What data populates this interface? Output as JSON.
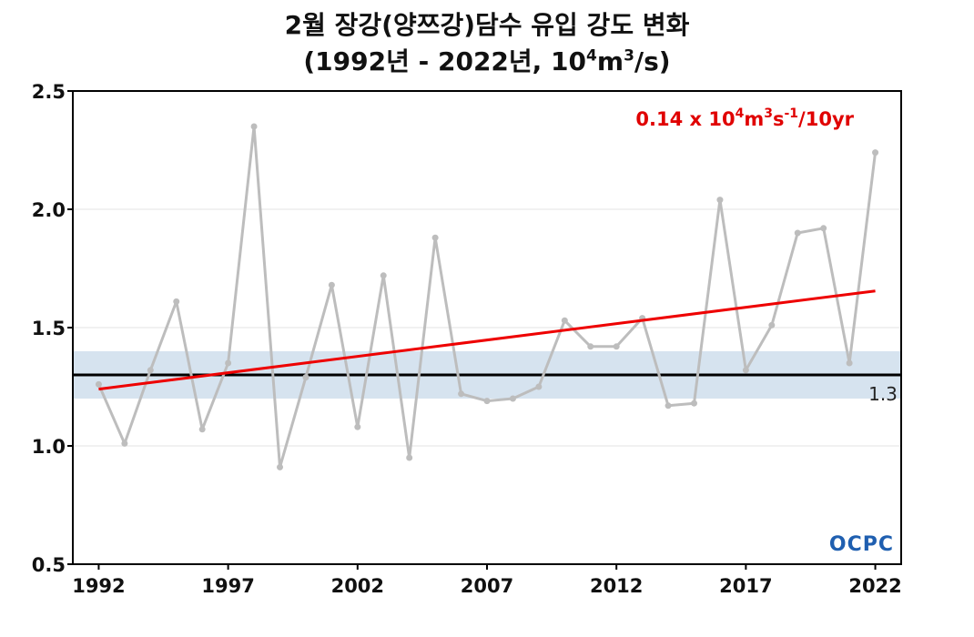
{
  "chart_data": {
    "type": "line",
    "title": "2월 장강(양쯔강)담수 유입 강도 변화",
    "subtitle_parts": {
      "pre": "(1992년 - 2022년, 10",
      "exp1": "4",
      "mid": "m",
      "exp2": "3",
      "post": "/s)"
    },
    "xlabel": "",
    "ylabel": "",
    "xlim": [
      1991,
      2023
    ],
    "ylim": [
      0.5,
      2.5
    ],
    "x_ticks": [
      1992,
      1997,
      2002,
      2007,
      2012,
      2017,
      2022
    ],
    "y_ticks": [
      "0.5",
      "1.0",
      "1.5",
      "2.0",
      "2.5"
    ],
    "grid": true,
    "series": [
      {
        "color": "#bdbdbd",
        "x": [
          1992,
          1993,
          1994,
          1995,
          1996,
          1997,
          1998,
          1999,
          2000,
          2001,
          2002,
          2003,
          2004,
          2005,
          2006,
          2007,
          2008,
          2009,
          2010,
          2011,
          2012,
          2013,
          2014,
          2015,
          2016,
          2017,
          2018,
          2019,
          2020,
          2021,
          2022
        ],
        "y": [
          1.26,
          1.01,
          1.32,
          1.61,
          1.07,
          1.35,
          2.35,
          0.91,
          1.29,
          1.68,
          1.08,
          1.72,
          0.95,
          1.88,
          1.22,
          1.19,
          1.2,
          1.25,
          1.53,
          1.42,
          1.42,
          1.54,
          1.17,
          1.18,
          2.04,
          1.32,
          1.51,
          1.9,
          1.92,
          1.35,
          2.24
        ]
      }
    ],
    "trend": {
      "x": [
        1992,
        2022
      ],
      "y": [
        1.24,
        1.655
      ],
      "color": "#ee0000"
    },
    "trend_annotation_parts": {
      "pre": "0.14 x 10",
      "e1": "4",
      "m": "m",
      "e2": "3",
      "s": "s",
      "e3": "-1",
      "post": "/10yr"
    },
    "reference": {
      "value": 1.3,
      "label": "1.3",
      "color": "#000000"
    },
    "band": {
      "y0": 1.2,
      "y1": 1.4,
      "color": "#d6e3ef"
    },
    "logo_text": "OCPC"
  }
}
